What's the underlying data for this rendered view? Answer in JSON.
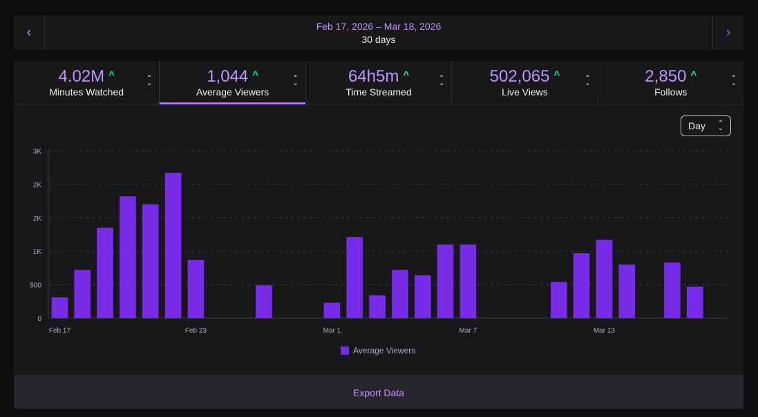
{
  "date_nav": {
    "prev_icon": "chevron-left-icon",
    "next_icon": "chevron-right-icon",
    "range": "Feb 17, 2026 – Mar 18, 2026",
    "days": "30 days"
  },
  "colors": {
    "accent": "#bf94ff",
    "bar": "#772ce8",
    "trend_up": "#00f593",
    "tab_active": "#a970ff"
  },
  "tabs": [
    {
      "value": "4.02M",
      "label": "Minutes Watched",
      "trend": "^",
      "active": false
    },
    {
      "value": "1,044",
      "label": "Average Viewers",
      "trend": "^",
      "active": true
    },
    {
      "value": "64h5m",
      "label": "Time Streamed",
      "trend": "^",
      "active": false
    },
    {
      "value": "502,065",
      "label": "Live Views",
      "trend": "^",
      "active": false
    },
    {
      "value": "2,850",
      "label": "Follows",
      "trend": "^",
      "active": false
    }
  ],
  "period_select": {
    "value": "Day"
  },
  "chart_data": {
    "type": "bar",
    "title": "",
    "xlabel": "",
    "ylabel": "",
    "ylim": [
      0,
      2500
    ],
    "yticks": [
      0,
      500,
      1000,
      1500,
      2000,
      2500
    ],
    "ytick_labels": [
      "0",
      "500",
      "1K",
      "2K",
      "2K",
      "3K"
    ],
    "grid": true,
    "legend": {
      "position": "bottom-center",
      "entries": [
        "Average Viewers"
      ]
    },
    "categories": [
      "Feb 17",
      "Feb 18",
      "Feb 19",
      "Feb 20",
      "Feb 21",
      "Feb 22",
      "Feb 23",
      "Feb 24",
      "Feb 25",
      "Feb 26",
      "Feb 27",
      "Feb 28",
      "Mar 1",
      "Mar 2",
      "Mar 3",
      "Mar 4",
      "Mar 5",
      "Mar 6",
      "Mar 7",
      "Mar 8",
      "Mar 9",
      "Mar 10",
      "Mar 11",
      "Mar 12",
      "Mar 13",
      "Mar 14",
      "Mar 15",
      "Mar 16",
      "Mar 17",
      "Mar 18"
    ],
    "x_tick_labels": [
      "Feb 17",
      "Feb 23",
      "Mar 1",
      "Mar 7",
      "Mar 13"
    ],
    "x_tick_indices": [
      0,
      6,
      12,
      18,
      24
    ],
    "series": [
      {
        "name": "Average Viewers",
        "values": [
          310,
          720,
          1350,
          1820,
          1700,
          2170,
          870,
          0,
          0,
          490,
          0,
          0,
          230,
          1210,
          340,
          720,
          640,
          1100,
          1100,
          0,
          0,
          0,
          540,
          970,
          1170,
          800,
          0,
          830,
          470,
          0
        ]
      }
    ]
  },
  "export": {
    "label": "Export Data"
  }
}
